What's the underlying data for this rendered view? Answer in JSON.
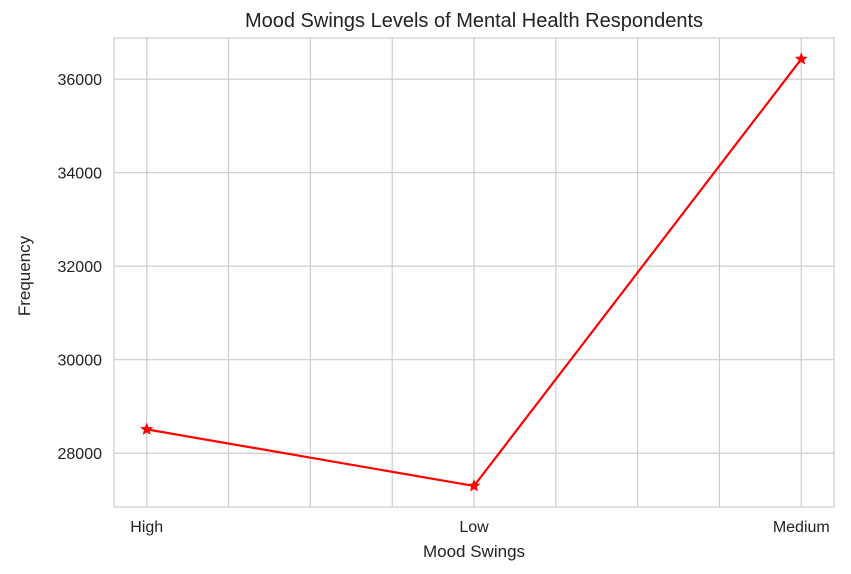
{
  "chart_data": {
    "type": "line",
    "title": "Mood Swings Levels of Mental Health Respondents",
    "xlabel": "Mood Swings",
    "ylabel": "Frequency",
    "categories": [
      "High",
      "Low",
      "Medium"
    ],
    "series": [
      {
        "values": [
          28510,
          27300,
          36430
        ],
        "color": "#ff0000",
        "marker": "star"
      }
    ],
    "yticks": [
      28000,
      30000,
      32000,
      34000,
      36000
    ],
    "ylim": [
      26850,
      36880
    ],
    "xlim": [
      -0.1,
      2.1
    ],
    "x_grid_step": 0.25,
    "grid": true,
    "legend": "none"
  }
}
